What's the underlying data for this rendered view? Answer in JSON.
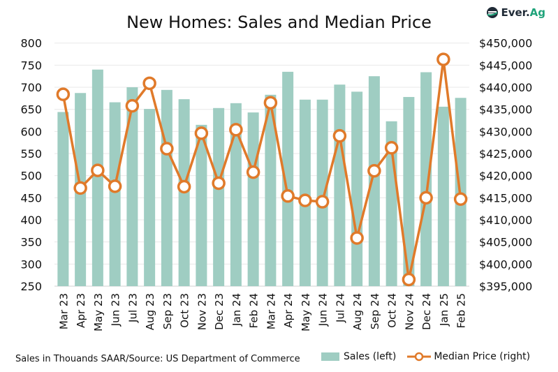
{
  "chart_data": {
    "type": "bar+line",
    "title": "New Homes: Sales and Median Price",
    "categories": [
      "Mar 23",
      "Apr 23",
      "May 23",
      "Jun 23",
      "Jul 23",
      "Aug 23",
      "Sep 23",
      "Oct 23",
      "Nov 23",
      "Dec 23",
      "Jan 24",
      "Feb 24",
      "Mar 24",
      "Apr 24",
      "May 24",
      "Jun 24",
      "Jul 24",
      "Aug 24",
      "Sep 24",
      "Oct 24",
      "Nov 24",
      "Dec 24",
      "Jan 25",
      "Feb 25"
    ],
    "series": [
      {
        "name": "Sales (left)",
        "type": "bar",
        "axis": "left",
        "color": "#9fcdc2",
        "values": [
          644,
          687,
          740,
          666,
          700,
          651,
          694,
          673,
          615,
          653,
          664,
          643,
          683,
          735,
          672,
          672,
          706,
          690,
          725,
          623,
          678,
          734,
          656,
          676
        ]
      },
      {
        "name": "Median Price (right)",
        "type": "line",
        "axis": "right",
        "color": "#e07a2a",
        "values": [
          438400,
          417200,
          421200,
          417600,
          435800,
          440900,
          426100,
          417500,
          429600,
          418300,
          430400,
          420800,
          436500,
          415400,
          414400,
          414100,
          429000,
          405900,
          421100,
          426300,
          396500,
          415000,
          446300,
          414700
        ]
      }
    ],
    "left_axis": {
      "ylim": [
        250,
        800
      ],
      "ticks": [
        "800",
        "750",
        "700",
        "650",
        "600",
        "550",
        "500",
        "450",
        "400",
        "350",
        "300",
        "250"
      ]
    },
    "right_axis": {
      "ylim": [
        395000,
        450000
      ],
      "ticks": [
        "$450,000",
        "$445,000",
        "$440,000",
        "$435,000",
        "$430,000",
        "$425,000",
        "$420,000",
        "$415,000",
        "$410,000",
        "$405,000",
        "$400,000",
        "$395,000"
      ]
    },
    "grid": true,
    "legend": "bottom-right"
  },
  "source_note": "Sales in Thouands SAAR/Source: US Department of Commerce",
  "logo": {
    "part1": "Ever.",
    "part2": "Ag"
  }
}
